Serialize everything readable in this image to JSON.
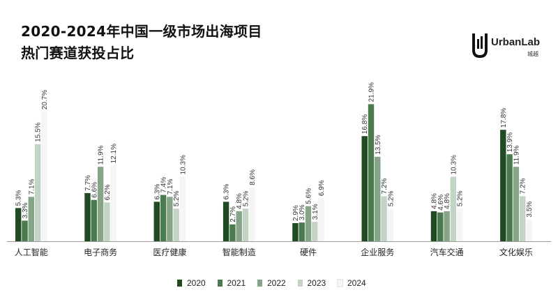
{
  "title": {
    "line1": "2020-2024年中国一级市场出海项目",
    "line2": "热门赛道获投占比"
  },
  "logo": {
    "name": "UrbanLab",
    "sub": "城越"
  },
  "colors": {
    "2020": "#1f4a22",
    "2021": "#4c7a4f",
    "2022": "#86a488",
    "2023": "#c3d4c4",
    "2024": "#f4f5f4"
  },
  "chart_data": {
    "type": "bar",
    "categories": [
      "人工智能",
      "电子商务",
      "医疗健康",
      "智能制造",
      "硬件",
      "企业服务",
      "汽车交通",
      "文化娱乐"
    ],
    "series": [
      {
        "name": "2020",
        "values": [
          5.3,
          7.7,
          6.3,
          6.3,
          2.9,
          16.8,
          4.8,
          17.8
        ]
      },
      {
        "name": "2021",
        "values": [
          3.3,
          6.6,
          7.4,
          2.7,
          3.0,
          21.9,
          4.6,
          13.9
        ]
      },
      {
        "name": "2022",
        "values": [
          7.1,
          11.9,
          7.1,
          4.8,
          5.6,
          13.5,
          4.8,
          11.9
        ]
      },
      {
        "name": "2023",
        "values": [
          15.5,
          6.2,
          5.2,
          5.2,
          3.1,
          7.2,
          10.3,
          7.2
        ]
      },
      {
        "name": "2024",
        "values": [
          20.7,
          12.1,
          10.3,
          8.6,
          6.9,
          5.2,
          5.2,
          3.5
        ]
      }
    ],
    "value_suffix": "%",
    "ylim": [
      0,
      22.5
    ],
    "grid": false,
    "legend": "bottom"
  }
}
